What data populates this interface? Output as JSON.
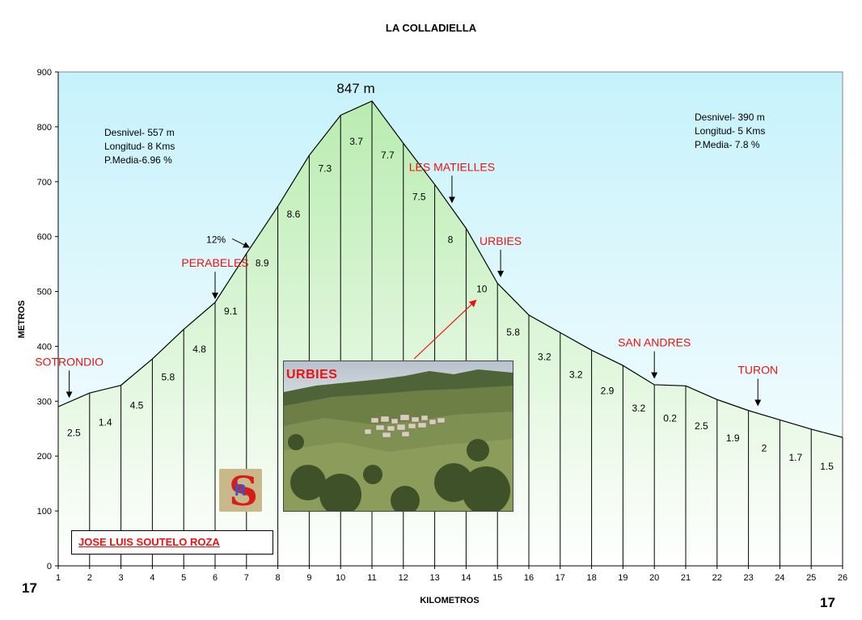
{
  "chart_data": {
    "type": "area",
    "title": "LA COLLADIELLA",
    "xlabel": "KILOMETROS",
    "ylabel": "METROS",
    "xlim": [
      1,
      26
    ],
    "ylim": [
      0,
      900
    ],
    "x_ticks": [
      1,
      2,
      3,
      4,
      5,
      6,
      7,
      8,
      9,
      10,
      11,
      12,
      13,
      14,
      15,
      16,
      17,
      18,
      19,
      20,
      21,
      22,
      23,
      24,
      25,
      26
    ],
    "y_ticks": [
      0,
      100,
      200,
      300,
      400,
      500,
      600,
      700,
      800,
      900
    ],
    "grid": false,
    "x": [
      1,
      2,
      3,
      4,
      5,
      6,
      7,
      8,
      9,
      10,
      11,
      12,
      13,
      14,
      15,
      16,
      17,
      18,
      19,
      20,
      21,
      22,
      23,
      24,
      25,
      26
    ],
    "y": [
      290,
      315,
      329,
      377,
      431,
      480,
      569,
      655,
      748,
      821,
      847,
      770,
      695,
      615,
      515,
      457,
      425,
      393,
      365,
      330,
      328,
      303,
      283,
      266,
      249,
      234
    ],
    "gradients": [
      "2.5",
      "1.4",
      "4.5",
      "5.8",
      "4.8",
      "9.1",
      "8.9",
      "8.6",
      "7.3",
      "3.7",
      "7.7",
      "7.5",
      "8",
      "10",
      "5.8",
      "3.2",
      "3.2",
      "2.9",
      "3.2",
      "0.2",
      "2.5",
      "1.9",
      "2",
      "1.7",
      "1.5"
    ],
    "peak_label": "847 m",
    "annotations": [
      {
        "text": "SOTRONDIO",
        "x": 1.35,
        "y": 300
      },
      {
        "text": "PERABELES",
        "x": 6,
        "y": 480
      },
      {
        "text": "LES MATIELLES",
        "x": 13.55,
        "y": 655
      },
      {
        "text": "URBIES",
        "x": 15.1,
        "y": 520
      },
      {
        "text": "SAN ANDRES",
        "x": 20,
        "y": 335
      },
      {
        "text": "TURON",
        "x": 23.3,
        "y": 285
      }
    ],
    "steep_label": {
      "text": "12%",
      "x": 6.7,
      "y": 590
    }
  },
  "info_left": [
    "Desnivel- 557 m",
    "Longitud- 8 Kms",
    "P.Media-6.96 %"
  ],
  "info_right": [
    "Desnivel- 390 m",
    "Longitud- 5 Kms",
    "P.Media- 7.8 %"
  ],
  "photo_label": "URBIES",
  "author": "JOSE LUIS SOUTELO ROZA",
  "logo_letters": [
    "S",
    "R"
  ],
  "page_number_left": "17",
  "page_number_right": "17",
  "colors": {
    "sky": "#ccf5ff",
    "profile_fill": "#ccf5c4",
    "label_red": "#ee1111"
  }
}
